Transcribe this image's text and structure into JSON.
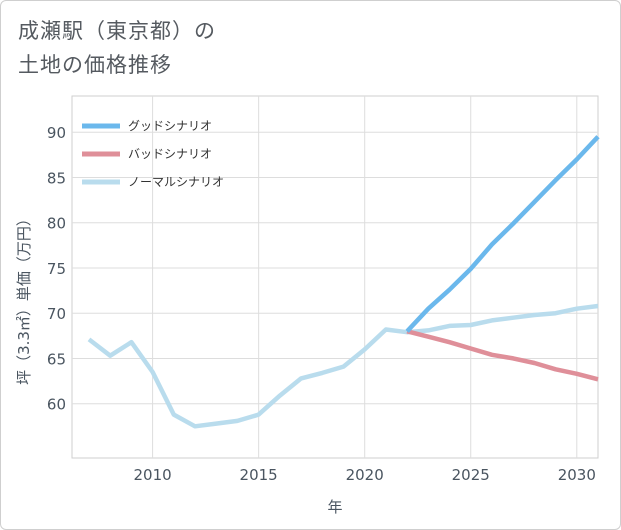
{
  "title_lines": [
    "成瀬駅（東京都）の",
    "土地の価格推移"
  ],
  "chart_data": {
    "type": "line",
    "xlabel": "年",
    "ylabel": "坪（3.3㎡）単価（万円）",
    "xlim": [
      2006.2,
      2031
    ],
    "ylim": [
      54,
      94
    ],
    "x_ticks": [
      2010,
      2015,
      2020,
      2025,
      2030
    ],
    "y_ticks": [
      60,
      65,
      70,
      75,
      80,
      85,
      90
    ],
    "grid": true,
    "legend_position": "top-left",
    "series": [
      {
        "name": "グッドシナリオ",
        "color": "#6bb8ec",
        "x": [
          2022,
          2023,
          2024,
          2025,
          2026,
          2027,
          2028,
          2029,
          2030,
          2031
        ],
        "y": [
          68.0,
          70.5,
          72.6,
          74.9,
          77.6,
          79.9,
          82.3,
          84.7,
          87.0,
          89.5
        ]
      },
      {
        "name": "バッドシナリオ",
        "color": "#df8f99",
        "x": [
          2022,
          2023,
          2024,
          2025,
          2026,
          2027,
          2028,
          2029,
          2030,
          2031
        ],
        "y": [
          68.0,
          67.4,
          66.8,
          66.1,
          65.4,
          65.0,
          64.5,
          63.8,
          63.3,
          62.7
        ]
      },
      {
        "name": "ノーマルシナリオ",
        "color": "#b9dced",
        "x": [
          2007,
          2008,
          2009,
          2010,
          2011,
          2012,
          2013,
          2014,
          2015,
          2016,
          2017,
          2018,
          2019,
          2020,
          2021,
          2022,
          2023,
          2024,
          2025,
          2026,
          2027,
          2028,
          2029,
          2030,
          2031
        ],
        "y": [
          67.1,
          65.3,
          66.8,
          63.5,
          58.8,
          57.5,
          57.8,
          58.1,
          58.8,
          60.9,
          62.8,
          63.4,
          64.1,
          66.0,
          68.2,
          67.9,
          68.1,
          68.6,
          68.7,
          69.2,
          69.5,
          69.8,
          70.0,
          70.5,
          70.8
        ]
      }
    ]
  }
}
